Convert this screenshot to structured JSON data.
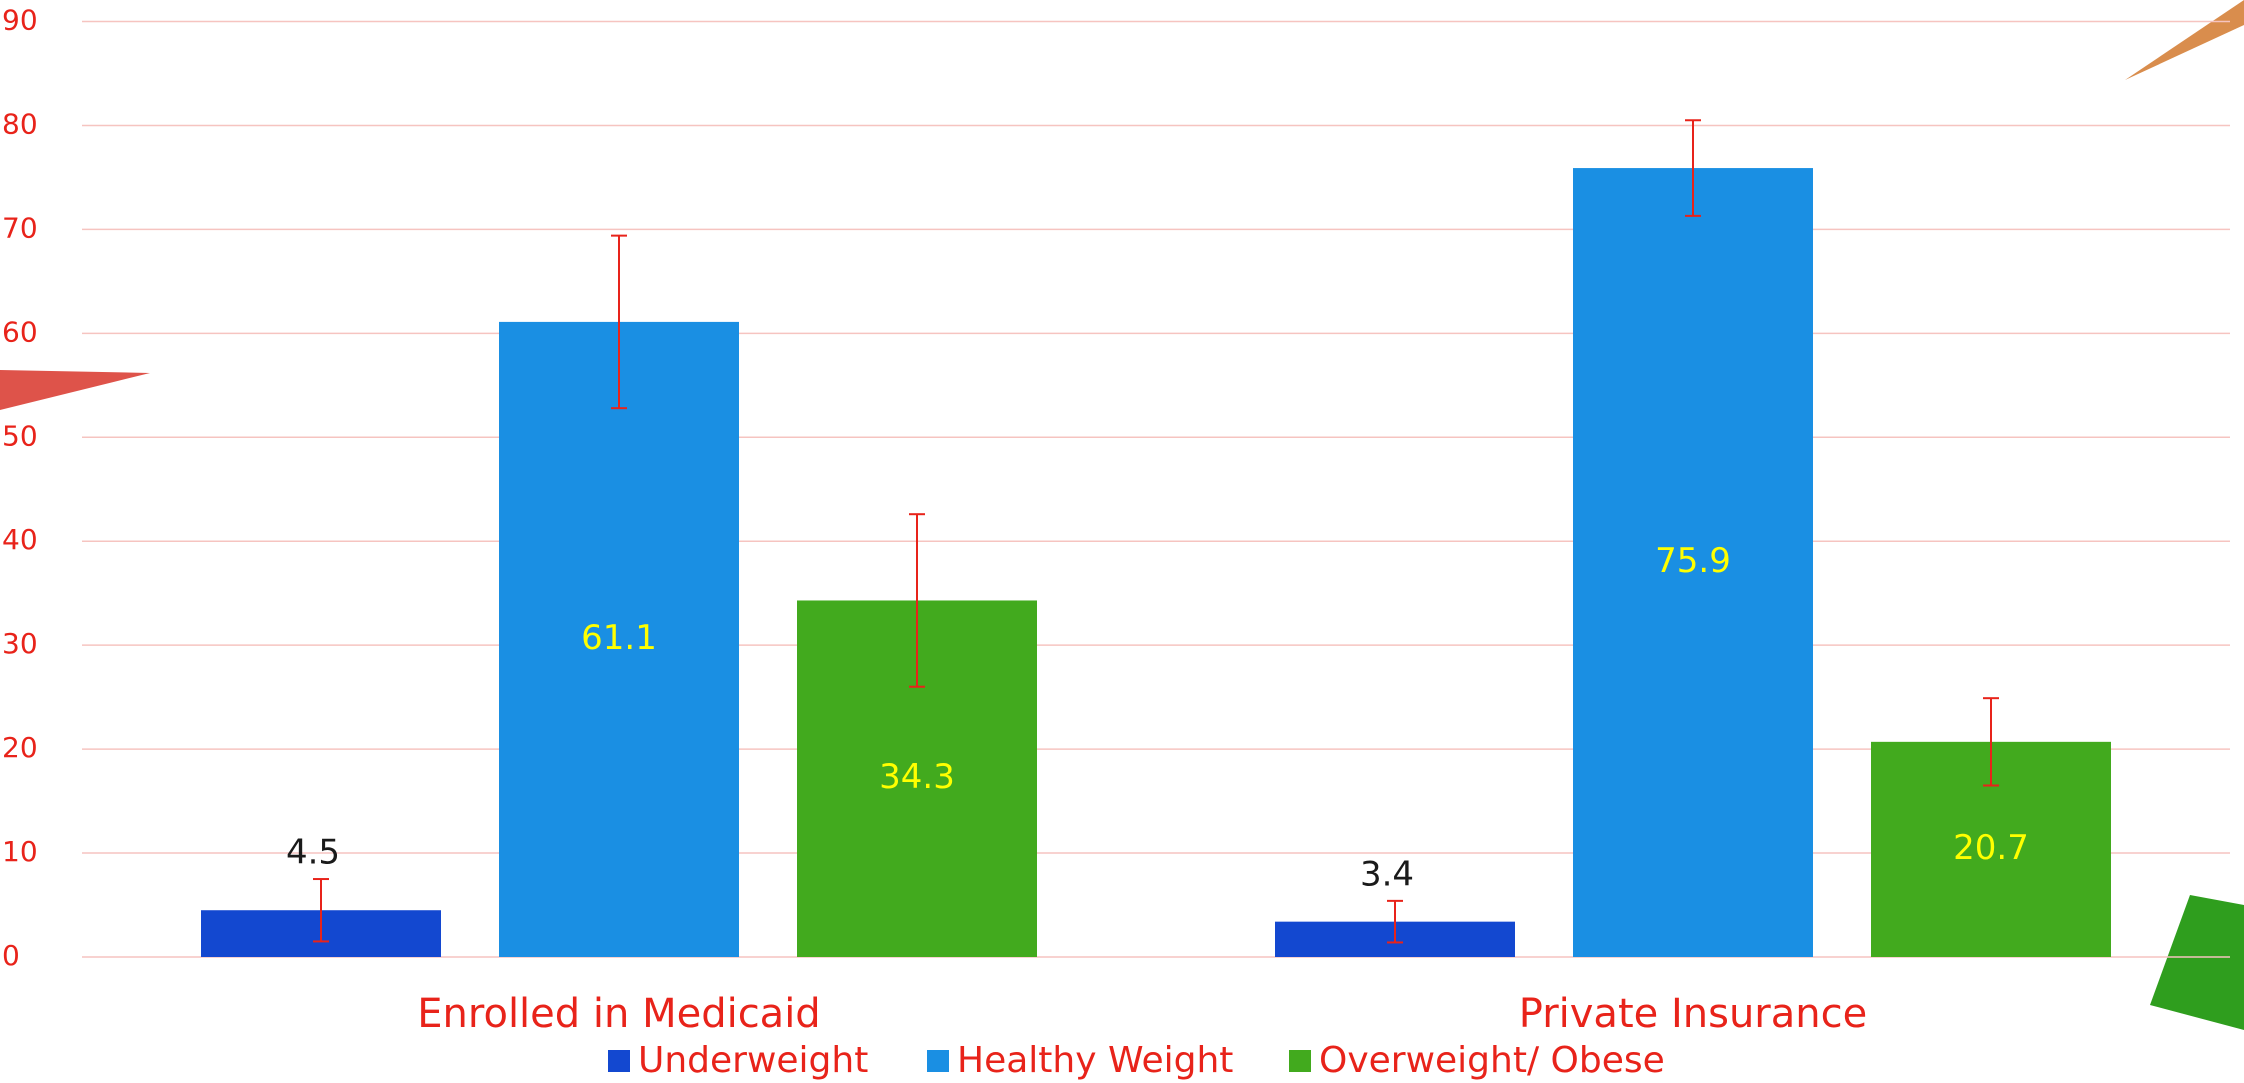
{
  "chart_data": {
    "type": "bar",
    "categories": [
      "Enrolled in Medicaid",
      "Private Insurance"
    ],
    "series": [
      {
        "name": "Underweight",
        "color": "#1348d0",
        "label_color": "#1a1a1a",
        "values": [
          4.5,
          3.4
        ],
        "errors": [
          3.0,
          2.0
        ]
      },
      {
        "name": "Healthy Weight",
        "color": "#1a8fe3",
        "label_color": "#ffff00",
        "values": [
          61.1,
          75.9
        ],
        "errors": [
          8.3,
          4.6
        ]
      },
      {
        "name": "Overweight/ Obese",
        "color": "#42aa1e",
        "label_color": "#ffff00",
        "values": [
          34.3,
          20.7
        ],
        "errors": [
          8.3,
          4.2
        ]
      }
    ],
    "error_color": "#e8231a",
    "ylim": [
      0,
      90
    ],
    "yticks": [
      0,
      10,
      20,
      30,
      40,
      50,
      60,
      70,
      80,
      90
    ],
    "grid": true
  }
}
